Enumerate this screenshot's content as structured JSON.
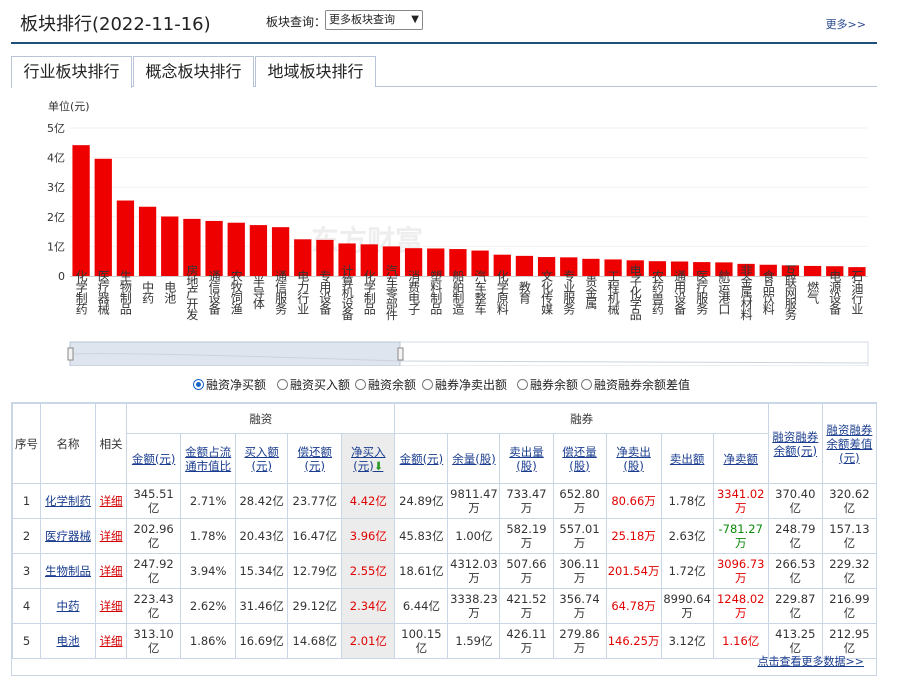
{
  "header": {
    "title": "板块排行(2022-11-16)",
    "query_label": "板块查询：",
    "query_select_value": "更多板块查询",
    "more_link": "更多>>"
  },
  "tabs": [
    {
      "label": "行业板块排行",
      "active": true
    },
    {
      "label": "概念板块排行",
      "active": false
    },
    {
      "label": "地域板块排行",
      "active": false
    }
  ],
  "chart_data": {
    "type": "bar",
    "ylabel": "单位(元)",
    "ylim": [
      0,
      5
    ],
    "yticks": [
      "0",
      "1亿",
      "2亿",
      "3亿",
      "4亿",
      "5亿"
    ],
    "color": "#ee0000",
    "watermark": "东方财富",
    "categories": [
      "化学制药",
      "医疗器械",
      "生物制品",
      "中药",
      "电池",
      "房地产开发",
      "通信设备",
      "农牧饲渔",
      "半导体",
      "通信服务",
      "电力行业",
      "专用设备",
      "计算机设备",
      "化学制品",
      "汽车零部件",
      "消费电子",
      "塑料制品",
      "船舶制造",
      "汽车整车",
      "化学原料",
      "教育",
      "文化传媒",
      "专业服务",
      "贵金属",
      "工程机械",
      "电子化学品",
      "农药兽药",
      "通用设备",
      "医疗服务",
      "航运港口",
      "非金属材料",
      "食品饮料",
      "互联网服务",
      "燃气",
      "电源设备",
      "石油行业"
    ],
    "values": [
      4.42,
      3.96,
      2.55,
      2.34,
      2.01,
      1.93,
      1.86,
      1.8,
      1.72,
      1.65,
      1.24,
      1.22,
      1.1,
      1.07,
      1.0,
      0.94,
      0.93,
      0.91,
      0.86,
      0.72,
      0.68,
      0.64,
      0.63,
      0.58,
      0.56,
      0.53,
      0.5,
      0.49,
      0.47,
      0.46,
      0.41,
      0.38,
      0.36,
      0.34,
      0.33,
      0.3
    ]
  },
  "radios": [
    {
      "label": "融资净买额",
      "checked": true
    },
    {
      "label": "融资买入额",
      "checked": false
    },
    {
      "label": "融资余额",
      "checked": false
    },
    {
      "label": "融券净卖出额",
      "checked": false
    },
    {
      "label": "融券余额",
      "checked": false
    },
    {
      "label": "融资融券余额差值",
      "checked": false
    }
  ],
  "table": {
    "headers": {
      "seq": "序号",
      "name": "名称",
      "related": "相关",
      "financing_group": "融资",
      "securities_group": "融券",
      "fin_cols": [
        "金额(元)",
        "金额占流通市值比",
        "买入额(元)",
        "偿还额(元)",
        "净买入(元)"
      ],
      "sec_cols": [
        "金额(元)",
        "余量(股)",
        "卖出量(股)",
        "偿还量(股)",
        "净卖出(股)",
        "卖出额",
        "净卖额"
      ],
      "total_balance": "融资融券余额(元)",
      "balance_diff": "融资融券余额差值(元)"
    },
    "rows": [
      {
        "seq": "1",
        "name": "化学制药",
        "detail": "详细",
        "fin_amount": "345.51亿",
        "fin_ratio": "2.71%",
        "fin_buy": "28.42亿",
        "fin_repay": "23.77亿",
        "fin_net_buy": "4.42亿",
        "sec_amount": "24.89亿",
        "sec_balance": "9811.47万",
        "sec_sell_vol": "733.47万",
        "sec_repay_vol": "652.80万",
        "sec_net_sell": "80.66万",
        "sec_sell_amt": "1.78亿",
        "sec_net_amt": "3341.02万",
        "total_balance": "370.40亿",
        "balance_diff": "320.62亿"
      },
      {
        "seq": "2",
        "name": "医疗器械",
        "detail": "详细",
        "fin_amount": "202.96亿",
        "fin_ratio": "1.78%",
        "fin_buy": "20.43亿",
        "fin_repay": "16.47亿",
        "fin_net_buy": "3.96亿",
        "sec_amount": "45.83亿",
        "sec_balance": "1.00亿",
        "sec_sell_vol": "582.19万",
        "sec_repay_vol": "557.01万",
        "sec_net_sell": "25.18万",
        "sec_sell_amt": "2.63亿",
        "sec_net_amt": "-781.27万",
        "total_balance": "248.79亿",
        "balance_diff": "157.13亿"
      },
      {
        "seq": "3",
        "name": "生物制品",
        "detail": "详细",
        "fin_amount": "247.92亿",
        "fin_ratio": "3.94%",
        "fin_buy": "15.34亿",
        "fin_repay": "12.79亿",
        "fin_net_buy": "2.55亿",
        "sec_amount": "18.61亿",
        "sec_balance": "4312.03万",
        "sec_sell_vol": "507.66万",
        "sec_repay_vol": "306.11万",
        "sec_net_sell": "201.54万",
        "sec_sell_amt": "1.72亿",
        "sec_net_amt": "3096.73万",
        "total_balance": "266.53亿",
        "balance_diff": "229.32亿"
      },
      {
        "seq": "4",
        "name": "中药",
        "detail": "详细",
        "fin_amount": "223.43亿",
        "fin_ratio": "2.62%",
        "fin_buy": "31.46亿",
        "fin_repay": "29.12亿",
        "fin_net_buy": "2.34亿",
        "sec_amount": "6.44亿",
        "sec_balance": "3338.23万",
        "sec_sell_vol": "421.52万",
        "sec_repay_vol": "356.74万",
        "sec_net_sell": "64.78万",
        "sec_sell_amt": "8990.64万",
        "sec_net_amt": "1248.02万",
        "total_balance": "229.87亿",
        "balance_diff": "216.99亿"
      },
      {
        "seq": "5",
        "name": "电池",
        "detail": "详细",
        "fin_amount": "313.10亿",
        "fin_ratio": "1.86%",
        "fin_buy": "16.69亿",
        "fin_repay": "14.68亿",
        "fin_net_buy": "2.01亿",
        "sec_amount": "100.15亿",
        "sec_balance": "1.59亿",
        "sec_sell_vol": "426.11万",
        "sec_repay_vol": "279.86万",
        "sec_net_sell": "146.25万",
        "sec_sell_amt": "3.12亿",
        "sec_net_amt": "1.16亿",
        "total_balance": "413.25亿",
        "balance_diff": "212.95亿"
      }
    ],
    "footer_link": "点击查看更多数据>>"
  }
}
